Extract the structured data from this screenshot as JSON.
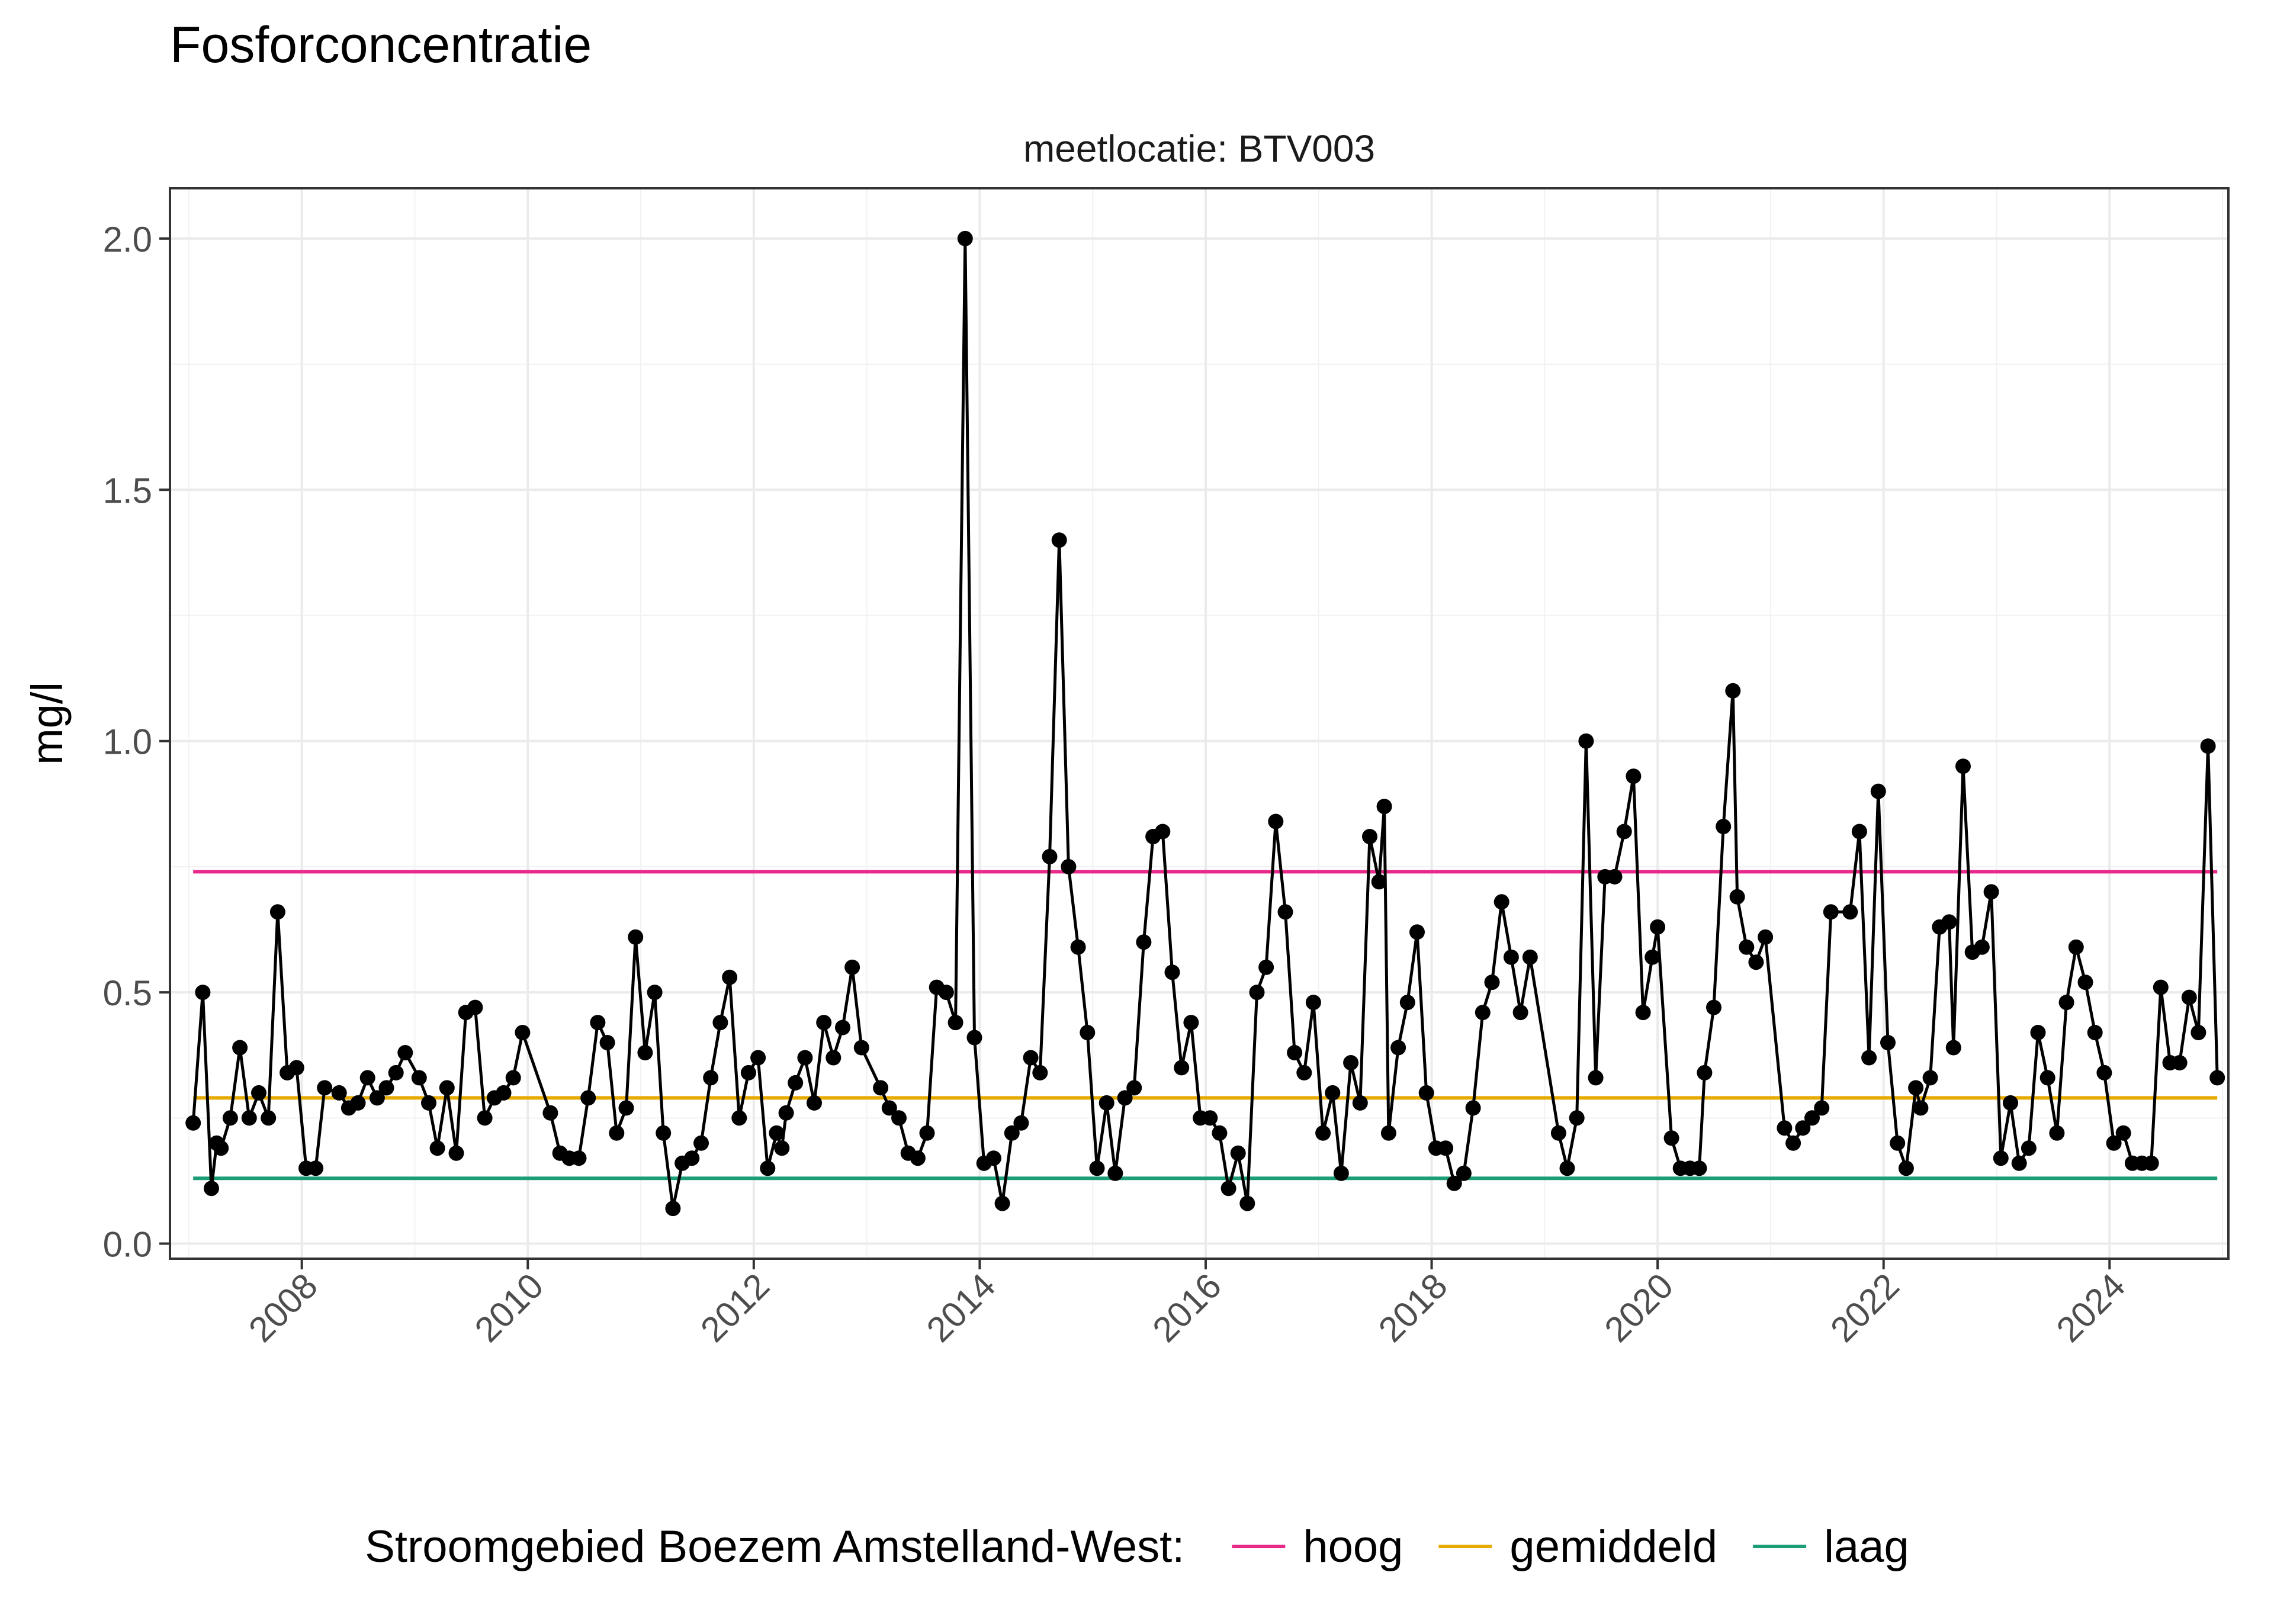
{
  "chart_data": {
    "type": "line",
    "title": "Fosforconcentratie",
    "facet_label": "meetlocatie: BTV003",
    "xlabel": "",
    "ylabel": "mg/l",
    "xlim": [
      "2006-11-01",
      "2025-01-20"
    ],
    "ylim": [
      -0.03,
      2.1
    ],
    "x_ticks": [
      "2008",
      "2010",
      "2012",
      "2014",
      "2016",
      "2018",
      "2020",
      "2022",
      "2024"
    ],
    "y_ticks": [
      "0.0",
      "0.5",
      "1.0",
      "1.5",
      "2.0"
    ],
    "grid": true,
    "legend": {
      "position": "bottom",
      "title": "Stroomgebied Boezem Amstelland-West:",
      "items": [
        {
          "label": "hoog",
          "color": "#e7298a"
        },
        {
          "label": "gemiddeld",
          "color": "#e6ab02"
        },
        {
          "label": "laag",
          "color": "#1b9e77"
        }
      ]
    },
    "reference_lines": [
      {
        "name": "hoog",
        "value": 0.74,
        "color": "#e7298a",
        "from": "2007-01-15",
        "to": "2024-12-15"
      },
      {
        "name": "gemiddeld",
        "value": 0.29,
        "color": "#e6ab02",
        "from": "2007-01-15",
        "to": "2024-12-15"
      },
      {
        "name": "laag",
        "value": 0.13,
        "color": "#1b9e77",
        "from": "2007-01-15",
        "to": "2024-12-15"
      }
    ],
    "series": [
      {
        "color": "#000000",
        "points": [
          [
            "2007-01-15",
            0.24
          ],
          [
            "2007-02-15",
            0.5
          ],
          [
            "2007-03-15",
            0.11
          ],
          [
            "2007-04-01",
            0.2
          ],
          [
            "2007-04-15",
            0.19
          ],
          [
            "2007-05-15",
            0.25
          ],
          [
            "2007-06-15",
            0.39
          ],
          [
            "2007-07-15",
            0.25
          ],
          [
            "2007-08-15",
            0.3
          ],
          [
            "2007-09-15",
            0.25
          ],
          [
            "2007-10-15",
            0.66
          ],
          [
            "2007-11-15",
            0.34
          ],
          [
            "2007-12-15",
            0.35
          ],
          [
            "2008-01-15",
            0.15
          ],
          [
            "2008-02-15",
            0.15
          ],
          [
            "2008-03-15",
            0.31
          ],
          [
            "2008-05-01",
            0.3
          ],
          [
            "2008-06-01",
            0.27
          ],
          [
            "2008-07-01",
            0.28
          ],
          [
            "2008-08-01",
            0.33
          ],
          [
            "2008-09-01",
            0.29
          ],
          [
            "2008-10-01",
            0.31
          ],
          [
            "2008-11-01",
            0.34
          ],
          [
            "2008-12-01",
            0.38
          ],
          [
            "2009-01-15",
            0.33
          ],
          [
            "2009-02-15",
            0.28
          ],
          [
            "2009-03-15",
            0.19
          ],
          [
            "2009-04-15",
            0.31
          ],
          [
            "2009-05-15",
            0.18
          ],
          [
            "2009-06-15",
            0.46
          ],
          [
            "2009-07-15",
            0.47
          ],
          [
            "2009-08-15",
            0.25
          ],
          [
            "2009-09-15",
            0.29
          ],
          [
            "2009-10-15",
            0.3
          ],
          [
            "2009-11-15",
            0.33
          ],
          [
            "2009-12-15",
            0.42
          ],
          [
            "2010-03-15",
            0.26
          ],
          [
            "2010-04-15",
            0.18
          ],
          [
            "2010-05-15",
            0.17
          ],
          [
            "2010-06-15",
            0.17
          ],
          [
            "2010-07-15",
            0.29
          ],
          [
            "2010-08-15",
            0.44
          ],
          [
            "2010-09-15",
            0.4
          ],
          [
            "2010-10-15",
            0.22
          ],
          [
            "2010-11-15",
            0.27
          ],
          [
            "2010-12-15",
            0.61
          ],
          [
            "2011-01-15",
            0.38
          ],
          [
            "2011-02-15",
            0.5
          ],
          [
            "2011-03-15",
            0.22
          ],
          [
            "2011-04-15",
            0.07
          ],
          [
            "2011-05-15",
            0.16
          ],
          [
            "2011-06-15",
            0.17
          ],
          [
            "2011-07-15",
            0.2
          ],
          [
            "2011-08-15",
            0.33
          ],
          [
            "2011-09-15",
            0.44
          ],
          [
            "2011-10-15",
            0.53
          ],
          [
            "2011-11-15",
            0.25
          ],
          [
            "2011-12-15",
            0.34
          ],
          [
            "2012-01-15",
            0.37
          ],
          [
            "2012-02-15",
            0.15
          ],
          [
            "2012-03-15",
            0.22
          ],
          [
            "2012-04-01",
            0.19
          ],
          [
            "2012-04-15",
            0.26
          ],
          [
            "2012-05-15",
            0.32
          ],
          [
            "2012-06-15",
            0.37
          ],
          [
            "2012-07-15",
            0.28
          ],
          [
            "2012-08-15",
            0.44
          ],
          [
            "2012-09-15",
            0.37
          ],
          [
            "2012-10-15",
            0.43
          ],
          [
            "2012-11-15",
            0.55
          ],
          [
            "2012-12-15",
            0.39
          ],
          [
            "2013-02-15",
            0.31
          ],
          [
            "2013-03-15",
            0.27
          ],
          [
            "2013-04-15",
            0.25
          ],
          [
            "2013-05-15",
            0.18
          ],
          [
            "2013-06-15",
            0.17
          ],
          [
            "2013-07-15",
            0.22
          ],
          [
            "2013-08-15",
            0.51
          ],
          [
            "2013-09-15",
            0.5
          ],
          [
            "2013-10-15",
            0.44
          ],
          [
            "2013-11-15",
            2.0
          ],
          [
            "2013-12-15",
            0.41
          ],
          [
            "2014-01-15",
            0.16
          ],
          [
            "2014-02-15",
            0.17
          ],
          [
            "2014-03-15",
            0.08
          ],
          [
            "2014-04-15",
            0.22
          ],
          [
            "2014-05-15",
            0.24
          ],
          [
            "2014-06-15",
            0.37
          ],
          [
            "2014-07-15",
            0.34
          ],
          [
            "2014-08-15",
            0.77
          ],
          [
            "2014-09-15",
            1.4
          ],
          [
            "2014-10-15",
            0.75
          ],
          [
            "2014-11-15",
            0.59
          ],
          [
            "2014-12-15",
            0.42
          ],
          [
            "2015-01-15",
            0.15
          ],
          [
            "2015-02-15",
            0.28
          ],
          [
            "2015-03-15",
            0.14
          ],
          [
            "2015-04-15",
            0.29
          ],
          [
            "2015-05-15",
            0.31
          ],
          [
            "2015-06-15",
            0.6
          ],
          [
            "2015-07-15",
            0.81
          ],
          [
            "2015-08-15",
            0.82
          ],
          [
            "2015-09-15",
            0.54
          ],
          [
            "2015-10-15",
            0.35
          ],
          [
            "2015-11-15",
            0.44
          ],
          [
            "2015-12-15",
            0.25
          ],
          [
            "2016-01-15",
            0.25
          ],
          [
            "2016-02-15",
            0.22
          ],
          [
            "2016-03-15",
            0.11
          ],
          [
            "2016-04-15",
            0.18
          ],
          [
            "2016-05-15",
            0.08
          ],
          [
            "2016-06-15",
            0.5
          ],
          [
            "2016-07-15",
            0.55
          ],
          [
            "2016-08-15",
            0.84
          ],
          [
            "2016-09-15",
            0.66
          ],
          [
            "2016-10-15",
            0.38
          ],
          [
            "2016-11-15",
            0.34
          ],
          [
            "2016-12-15",
            0.48
          ],
          [
            "2017-01-15",
            0.22
          ],
          [
            "2017-02-15",
            0.3
          ],
          [
            "2017-03-15",
            0.14
          ],
          [
            "2017-04-15",
            0.36
          ],
          [
            "2017-05-15",
            0.28
          ],
          [
            "2017-06-15",
            0.81
          ],
          [
            "2017-07-15",
            0.72
          ],
          [
            "2017-08-01",
            0.87
          ],
          [
            "2017-08-15",
            0.22
          ],
          [
            "2017-09-15",
            0.39
          ],
          [
            "2017-10-15",
            0.48
          ],
          [
            "2017-11-15",
            0.62
          ],
          [
            "2017-12-15",
            0.3
          ],
          [
            "2018-01-15",
            0.19
          ],
          [
            "2018-02-15",
            0.19
          ],
          [
            "2018-03-15",
            0.12
          ],
          [
            "2018-04-15",
            0.14
          ],
          [
            "2018-05-15",
            0.27
          ],
          [
            "2018-06-15",
            0.46
          ],
          [
            "2018-07-15",
            0.52
          ],
          [
            "2018-08-15",
            0.68
          ],
          [
            "2018-09-15",
            0.57
          ],
          [
            "2018-10-15",
            0.46
          ],
          [
            "2018-11-15",
            0.57
          ],
          [
            "2019-02-15",
            0.22
          ],
          [
            "2019-03-15",
            0.15
          ],
          [
            "2019-04-15",
            0.25
          ],
          [
            "2019-05-15",
            1.0
          ],
          [
            "2019-06-15",
            0.33
          ],
          [
            "2019-07-15",
            0.73
          ],
          [
            "2019-08-15",
            0.73
          ],
          [
            "2019-09-15",
            0.82
          ],
          [
            "2019-10-15",
            0.93
          ],
          [
            "2019-11-15",
            0.46
          ],
          [
            "2019-12-15",
            0.57
          ],
          [
            "2020-01-01",
            0.63
          ],
          [
            "2020-02-15",
            0.21
          ],
          [
            "2020-03-15",
            0.15
          ],
          [
            "2020-04-15",
            0.15
          ],
          [
            "2020-05-15",
            0.15
          ],
          [
            "2020-06-01",
            0.34
          ],
          [
            "2020-07-01",
            0.47
          ],
          [
            "2020-08-01",
            0.83
          ],
          [
            "2020-09-01",
            1.1
          ],
          [
            "2020-09-15",
            0.69
          ],
          [
            "2020-10-15",
            0.59
          ],
          [
            "2020-11-15",
            0.56
          ],
          [
            "2020-12-15",
            0.61
          ],
          [
            "2021-02-15",
            0.23
          ],
          [
            "2021-03-15",
            0.2
          ],
          [
            "2021-04-15",
            0.23
          ],
          [
            "2021-05-15",
            0.25
          ],
          [
            "2021-06-15",
            0.27
          ],
          [
            "2021-07-15",
            0.66
          ],
          [
            "2021-09-15",
            0.66
          ],
          [
            "2021-10-15",
            0.82
          ],
          [
            "2021-11-15",
            0.37
          ],
          [
            "2021-12-15",
            0.9
          ],
          [
            "2022-01-15",
            0.4
          ],
          [
            "2022-02-15",
            0.2
          ],
          [
            "2022-03-15",
            0.15
          ],
          [
            "2022-04-15",
            0.31
          ],
          [
            "2022-05-01",
            0.27
          ],
          [
            "2022-06-01",
            0.33
          ],
          [
            "2022-07-01",
            0.63
          ],
          [
            "2022-08-01",
            0.64
          ],
          [
            "2022-08-15",
            0.39
          ],
          [
            "2022-09-15",
            0.95
          ],
          [
            "2022-10-15",
            0.58
          ],
          [
            "2022-11-15",
            0.59
          ],
          [
            "2022-12-15",
            0.7
          ],
          [
            "2023-01-15",
            0.17
          ],
          [
            "2023-02-15",
            0.28
          ],
          [
            "2023-03-15",
            0.16
          ],
          [
            "2023-04-15",
            0.19
          ],
          [
            "2023-05-15",
            0.42
          ],
          [
            "2023-06-15",
            0.33
          ],
          [
            "2023-07-15",
            0.22
          ],
          [
            "2023-08-15",
            0.48
          ],
          [
            "2023-09-15",
            0.59
          ],
          [
            "2023-10-15",
            0.52
          ],
          [
            "2023-11-15",
            0.42
          ],
          [
            "2023-12-15",
            0.34
          ],
          [
            "2024-01-15",
            0.2
          ],
          [
            "2024-02-15",
            0.22
          ],
          [
            "2024-03-15",
            0.16
          ],
          [
            "2024-04-15",
            0.16
          ],
          [
            "2024-05-15",
            0.16
          ],
          [
            "2024-06-15",
            0.51
          ],
          [
            "2024-07-15",
            0.36
          ],
          [
            "2024-08-15",
            0.36
          ],
          [
            "2024-09-15",
            0.49
          ],
          [
            "2024-10-15",
            0.42
          ],
          [
            "2024-11-15",
            0.99
          ],
          [
            "2024-12-15",
            0.33
          ]
        ]
      }
    ]
  }
}
